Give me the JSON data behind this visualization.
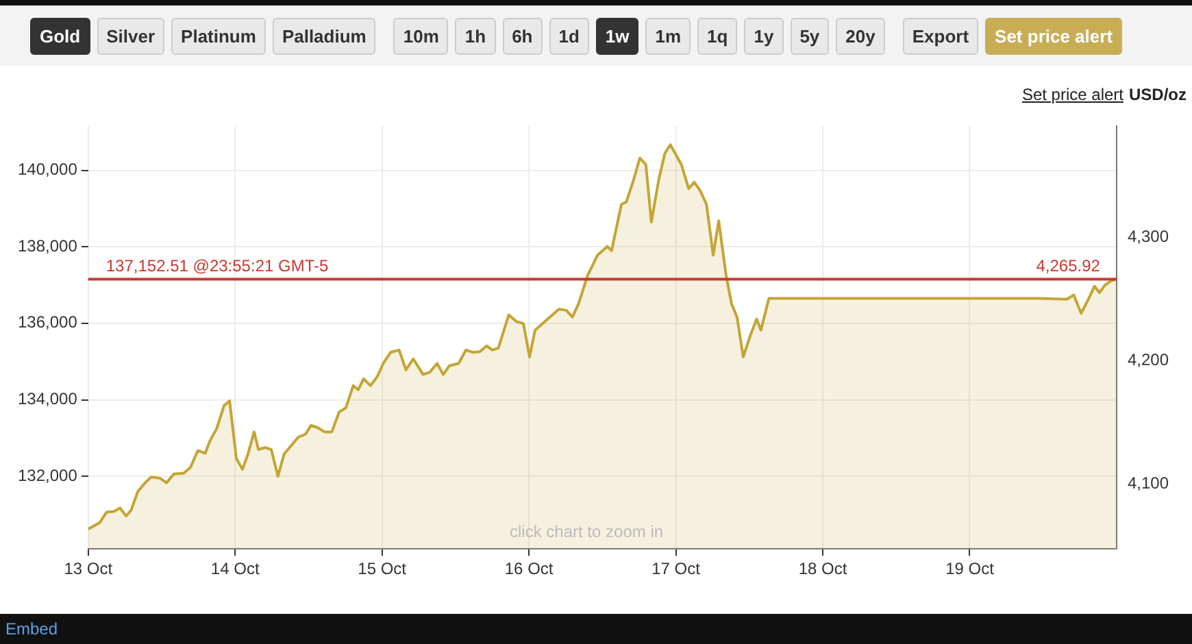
{
  "chart_data": {
    "type": "area",
    "ylabel": null,
    "y2label": "USD/oz",
    "annotations": [
      "Gold",
      "Silver",
      "Platinum",
      "Palladium",
      "10m",
      "1h",
      "6h",
      "1d",
      "1w",
      "1m",
      "1q",
      "1y",
      "5y",
      "20y",
      "Export",
      "Set price alert",
      "Set price alert",
      "click chart to zoom in",
      "Embed",
      {
        "text": "4,265.92",
        "x": "--10-20",
        "y": 137152.51
      }
    ],
    "xlim": [
      "--10-13",
      "--10-20"
    ],
    "xticks": [
      {
        "value": "--10-13",
        "label": "13 Oct"
      },
      {
        "value": "--10-14",
        "label": "14 Oct"
      },
      {
        "value": "--10-15",
        "label": "15 Oct"
      },
      {
        "value": "--10-16",
        "label": "16 Oct"
      },
      {
        "value": "--10-17",
        "label": "17 Oct"
      },
      {
        "value": "--10-18",
        "label": "18 Oct"
      },
      {
        "value": "--10-19",
        "label": "19 Oct"
      }
    ],
    "ylim": [
      130100,
      141150
    ],
    "yticks": [
      {
        "value": 132000,
        "label": "132,000"
      },
      {
        "value": 134000,
        "label": "134,000"
      },
      {
        "value": 136000,
        "label": "136,000"
      },
      {
        "value": 138000,
        "label": "138,000"
      },
      {
        "value": 140000,
        "label": "140,000"
      }
    ],
    "y2lim": [
      4047,
      4390
    ],
    "y2ticks": [
      {
        "value": 4100,
        "label": "4,100"
      },
      {
        "value": 4200,
        "label": "4,200"
      },
      {
        "value": 4300,
        "label": "4,300"
      }
    ],
    "grid": true,
    "legend": false,
    "marker": "none",
    "line_style": "solid",
    "ref_lines": [
      {
        "axis": "y",
        "value": 137152.51,
        "label": "137,152.51 @23:55:21 GMT-5",
        "color": "#c8382f"
      }
    ],
    "series": [
      {
        "color": "#c4a535",
        "axis": "y",
        "x": [
          "--10-13T00:00",
          "--10-13T01:54",
          "--10-13T03:00",
          "--10-13T04:12",
          "--10-13T05:12",
          "--10-13T06:12",
          "--10-13T07:00",
          "--10-13T08:06",
          "--10-13T09:18",
          "--10-13T10:18",
          "--10-13T11:42",
          "--10-13T12:48",
          "--10-13T14:00",
          "--10-13T15:36",
          "--10-13T16:42",
          "--10-13T17:54",
          "--10-13T19:06",
          "--10-13T19:54",
          "--10-13T21:00",
          "--10-13T22:12",
          "--10-13T23:06",
          "--10-14T00:12",
          "--10-14T01:12",
          "--10-14T02:06",
          "--10-14T03:06",
          "--10-14T03:48",
          "--10-14T04:54",
          "--10-14T05:54",
          "--10-14T07:00",
          "--10-14T08:00",
          "--10-14T09:12",
          "--10-14T10:18",
          "--10-14T11:30",
          "--10-14T12:24",
          "--10-14T13:30",
          "--10-14T14:36",
          "--10-14T15:48",
          "--10-14T17:00",
          "--10-14T18:06",
          "--10-14T19:18",
          "--10-14T20:06",
          "--10-14T21:00",
          "--10-14T22:06",
          "--10-14T23:12",
          "--10-15T00:12",
          "--10-15T01:24",
          "--10-15T02:48",
          "--10-15T03:54",
          "--10-15T05:06",
          "--10-15T06:42",
          "--10-15T07:48",
          "--10-15T09:00",
          "--10-15T10:00",
          "--10-15T11:00",
          "--10-15T12:30",
          "--10-15T13:42",
          "--10-15T14:54",
          "--10-15T16:00",
          "--10-15T17:06",
          "--10-15T18:00",
          "--10-15T19:00",
          "--10-15T20:42",
          "--10-15T21:54",
          "--10-15T23:06",
          "--10-16T00:06",
          "--10-16T01:00",
          "--10-16T02:12",
          "--10-16T03:24",
          "--10-16T04:54",
          "--10-16T06:06",
          "--10-16T07:06",
          "--10-16T08:06",
          "--10-16T09:36",
          "--10-16T11:12",
          "--10-16T12:48",
          "--10-16T13:30",
          "--10-16T15:06",
          "--10-16T15:54",
          "--10-16T17:06",
          "--10-16T18:06",
          "--10-16T19:06",
          "--10-16T20:00",
          "--10-16T21:12",
          "--10-16T22:12",
          "--10-16T23:06",
          "--10-16T23:54",
          "--10-17T00:54",
          "--10-17T02:06",
          "--10-17T03:00",
          "--10-17T04:00",
          "--10-17T05:00",
          "--10-17T06:06",
          "--10-17T07:00",
          "--10-17T08:12",
          "--10-17T09:06",
          "--10-17T10:00",
          "--10-17T11:00",
          "--10-17T12:12",
          "--10-17T13:12",
          "--10-17T13:54",
          "--10-17T15:12",
          "--10-19T11:12",
          "--10-19T15:54",
          "--10-19T17:00",
          "--10-19T18:12",
          "--10-19T19:24",
          "--10-19T20:24",
          "--10-19T21:12",
          "--10-19T22:06",
          "--10-19T23:06",
          "--10-20T00:00"
        ],
        "values": [
          130620,
          130790,
          131060,
          131080,
          131170,
          130960,
          131110,
          131600,
          131830,
          131980,
          131950,
          131830,
          132060,
          132080,
          132230,
          132670,
          132600,
          132930,
          133250,
          133850,
          133970,
          132470,
          132180,
          132580,
          133160,
          132700,
          132750,
          132700,
          132000,
          132580,
          132810,
          133020,
          133100,
          133330,
          133270,
          133160,
          133160,
          133680,
          133790,
          134370,
          134260,
          134550,
          134370,
          134600,
          134950,
          135240,
          135300,
          134780,
          135070,
          134660,
          134720,
          134950,
          134660,
          134890,
          134950,
          135300,
          135240,
          135260,
          135410,
          135300,
          135350,
          136220,
          136050,
          135990,
          135120,
          135820,
          135990,
          136160,
          136370,
          136340,
          136160,
          136510,
          137260,
          137780,
          138010,
          137900,
          139110,
          139170,
          139750,
          140320,
          140150,
          138650,
          139750,
          140440,
          140670,
          140440,
          140150,
          139520,
          139690,
          139460,
          139110,
          137780,
          138680,
          137260,
          136510,
          136160,
          135120,
          135700,
          136110,
          135820,
          136650,
          136650,
          136630,
          136740,
          136260,
          136630,
          136970,
          136800,
          137000,
          137110,
          137150
        ]
      }
    ]
  }
}
